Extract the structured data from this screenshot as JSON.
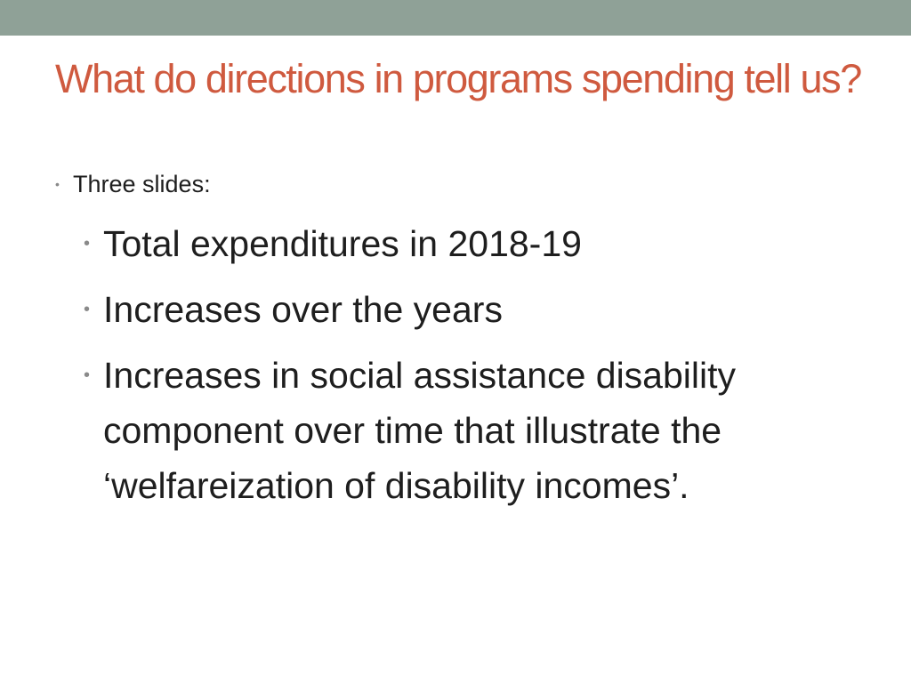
{
  "slide": {
    "title": "What do directions in programs spending tell us?",
    "intro": "Three slides:",
    "items": [
      "Total expenditures in 2018-19",
      "Increases over the years",
      "Increases in social assistance disability component over time that illustrate the ‘welfareization of disability incomes’."
    ],
    "bullet_glyph": "•"
  },
  "colors": {
    "title": "#cf5a3f",
    "top_band": "#8fa197",
    "body_text": "#1e1e1e",
    "bullet": "#8a8a8a"
  }
}
